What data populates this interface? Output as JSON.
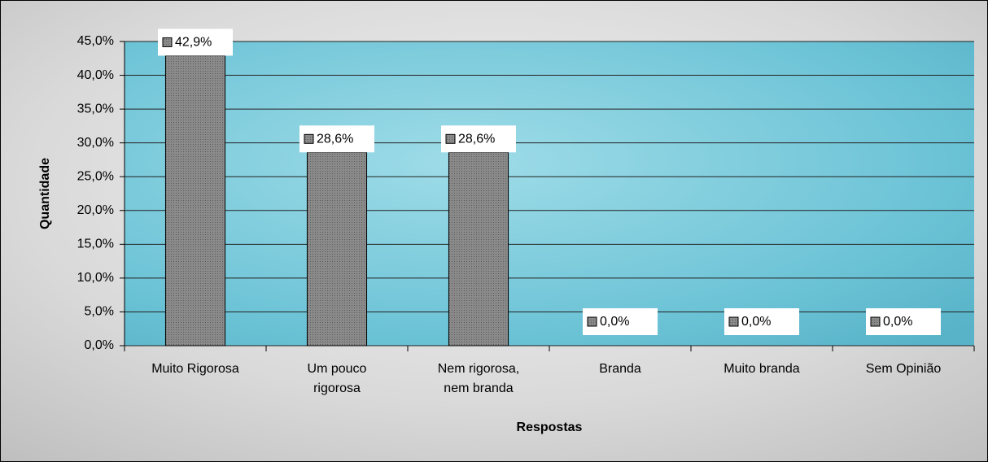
{
  "chart_data": {
    "type": "bar",
    "x_label": "Respostas",
    "y_label": "Quantidade",
    "categories": [
      "Muito Rigorosa",
      "Um pouco rigorosa",
      "Nem rigorosa, nem branda",
      "Branda",
      "Muito branda",
      "Sem Opinião"
    ],
    "values": [
      42.9,
      28.6,
      28.6,
      0,
      0,
      0
    ],
    "value_labels": [
      "42,9%",
      "28,6%",
      "28,6%",
      "0,0%",
      "0,0%",
      "0,0%"
    ],
    "color": "#808080",
    "ylim": [
      0,
      45
    ],
    "yticks": [
      {
        "value": 0,
        "label": "0,0%"
      },
      {
        "value": 5,
        "label": "5,0%"
      },
      {
        "value": 10,
        "label": "10,0%"
      },
      {
        "value": 15,
        "label": "15,0%"
      },
      {
        "value": 20,
        "label": "20,0%"
      },
      {
        "value": 25,
        "label": "25,0%"
      },
      {
        "value": 30,
        "label": "30,0%"
      },
      {
        "value": 35,
        "label": "35,0%"
      },
      {
        "value": 40,
        "label": "40,0%"
      },
      {
        "value": 45,
        "label": "45,0%"
      }
    ],
    "grid": true
  }
}
